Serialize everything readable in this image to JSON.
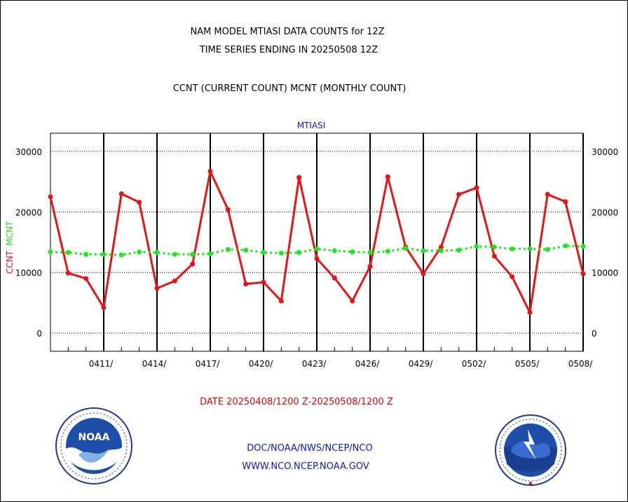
{
  "header": {
    "title_line1": "NAM MODEL MTIASI DATA COUNTS for 12Z",
    "title_line2": "TIME SERIES ENDING IN 20250508 12Z",
    "subtitle": "CCNT (CURRENT COUNT) MCNT (MONTHLY COUNT)"
  },
  "footer": {
    "date_range": "DATE 20250408/1200 Z-20250508/1200 Z",
    "credit_line1": "DOC/NOAA/NWS/NCEP/NCO",
    "credit_line2": "WWW.NCO.NCEP.NOAA.GOV"
  },
  "logos": {
    "left": "noaa-logo",
    "right": "national-weather-service-logo"
  },
  "colors": {
    "ccnt": "#e61414",
    "mcnt": "#1ee61e",
    "labels_blue": "#1414c8",
    "date_red": "#e10000"
  },
  "chart_data": {
    "type": "line",
    "title": "MTIASI",
    "ylabel_parts": [
      "CCNT",
      "MCNT"
    ],
    "ylim": [
      -3000,
      33000
    ],
    "yticks": [
      0,
      10000,
      20000,
      30000
    ],
    "ytick_labels": [
      "0",
      "10000",
      "20000",
      "30000"
    ],
    "x_range": [
      "0408",
      "0508"
    ],
    "x_tick_labels": [
      "0411/",
      "0414/",
      "0417/",
      "0420/",
      "0423/",
      "0426/",
      "0429/",
      "0502/",
      "0505/",
      "0508/"
    ],
    "grid": true,
    "x": [
      "0408",
      "0409",
      "0410",
      "0411",
      "0412",
      "0413",
      "0414",
      "0415",
      "0416",
      "0417",
      "0418",
      "0419",
      "0420",
      "0421",
      "0422",
      "0423",
      "0424",
      "0425",
      "0426",
      "0427",
      "0428",
      "0429",
      "0430",
      "0501",
      "0502",
      "0503",
      "0504",
      "0505",
      "0506",
      "0507",
      "0508"
    ],
    "series": [
      {
        "name": "CCNT",
        "values": [
          22500,
          9900,
          9000,
          4200,
          23000,
          21600,
          7400,
          8600,
          11400,
          26700,
          20400,
          8100,
          8400,
          5300,
          25700,
          12300,
          9100,
          5300,
          11000,
          25800,
          14200,
          9800,
          14200,
          22900,
          24000,
          12700,
          9300,
          3400,
          22900,
          21700,
          9800
        ]
      },
      {
        "name": "MCNT",
        "values": [
          13400,
          13300,
          13000,
          13000,
          12900,
          13400,
          13300,
          13000,
          13000,
          13100,
          13800,
          13700,
          13300,
          13200,
          13300,
          13900,
          13600,
          13400,
          13300,
          13500,
          14000,
          13600,
          13600,
          13700,
          14300,
          14200,
          13900,
          13900,
          13800,
          14400,
          14300
        ]
      }
    ]
  }
}
